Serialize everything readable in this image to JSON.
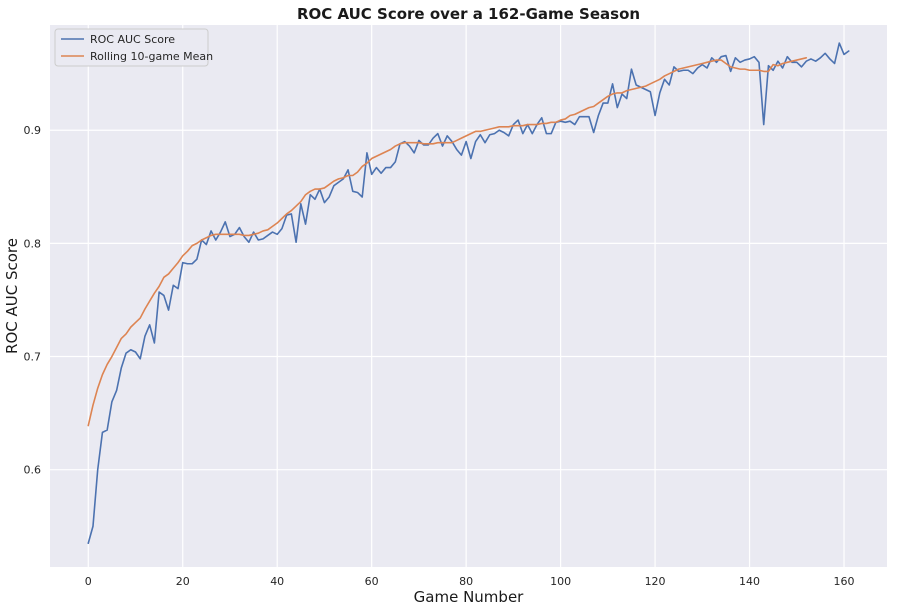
{
  "chart_data": {
    "type": "line",
    "title": "ROC AUC Score over a 162-Game Season",
    "xlabel": "Game Number",
    "ylabel": "ROC AUC Score",
    "xlim": [
      -8.1,
      169.1
    ],
    "ylim": [
      0.514,
      0.993
    ],
    "xticks": [
      0,
      20,
      40,
      60,
      80,
      100,
      120,
      140,
      160
    ],
    "yticks": [
      0.6,
      0.7,
      0.8,
      0.9
    ],
    "ytick_labels": [
      "0.6",
      "0.7",
      "0.8",
      "0.9"
    ],
    "grid": true,
    "legend_position": "upper-left",
    "series": [
      {
        "name": "ROC AUC Score",
        "color": "#4c72b0",
        "x_start": 0,
        "values": [
          0.535,
          0.55,
          0.6,
          0.633,
          0.635,
          0.66,
          0.67,
          0.69,
          0.703,
          0.706,
          0.704,
          0.698,
          0.718,
          0.728,
          0.712,
          0.757,
          0.754,
          0.741,
          0.763,
          0.76,
          0.783,
          0.782,
          0.782,
          0.786,
          0.803,
          0.799,
          0.811,
          0.803,
          0.81,
          0.819,
          0.806,
          0.808,
          0.814,
          0.806,
          0.801,
          0.81,
          0.803,
          0.804,
          0.807,
          0.81,
          0.808,
          0.813,
          0.825,
          0.826,
          0.801,
          0.835,
          0.817,
          0.843,
          0.839,
          0.848,
          0.836,
          0.841,
          0.851,
          0.854,
          0.857,
          0.865,
          0.846,
          0.845,
          0.841,
          0.88,
          0.861,
          0.867,
          0.862,
          0.867,
          0.867,
          0.872,
          0.888,
          0.89,
          0.886,
          0.88,
          0.891,
          0.887,
          0.887,
          0.893,
          0.897,
          0.886,
          0.895,
          0.89,
          0.883,
          0.878,
          0.89,
          0.875,
          0.89,
          0.896,
          0.889,
          0.896,
          0.897,
          0.9,
          0.898,
          0.895,
          0.905,
          0.909,
          0.897,
          0.905,
          0.897,
          0.905,
          0.911,
          0.897,
          0.897,
          0.907,
          0.908,
          0.907,
          0.908,
          0.905,
          0.912,
          0.912,
          0.912,
          0.898,
          0.913,
          0.924,
          0.924,
          0.941,
          0.92,
          0.932,
          0.928,
          0.954,
          0.94,
          0.938,
          0.936,
          0.934,
          0.913,
          0.933,
          0.945,
          0.94,
          0.956,
          0.952,
          0.953,
          0.953,
          0.95,
          0.955,
          0.958,
          0.955,
          0.964,
          0.96,
          0.965,
          0.966,
          0.952,
          0.964,
          0.96,
          0.962,
          0.963,
          0.965,
          0.96,
          0.905,
          0.957,
          0.953,
          0.961,
          0.955,
          0.965,
          0.96,
          0.96,
          0.956,
          0.961,
          0.963,
          0.961,
          0.964,
          0.968,
          0.963,
          0.959,
          0.977,
          0.967,
          0.97
        ]
      },
      {
        "name": "Rolling 10-game Mean",
        "color": "#dd8452",
        "x_start": 0,
        "values": [
          0.639,
          0.657,
          0.672,
          0.684,
          0.693,
          0.7,
          0.708,
          0.716,
          0.72,
          0.726,
          0.73,
          0.734,
          0.742,
          0.749,
          0.756,
          0.762,
          0.77,
          0.773,
          0.778,
          0.783,
          0.789,
          0.793,
          0.798,
          0.8,
          0.803,
          0.805,
          0.807,
          0.808,
          0.808,
          0.808,
          0.808,
          0.808,
          0.808,
          0.807,
          0.807,
          0.808,
          0.809,
          0.811,
          0.812,
          0.815,
          0.818,
          0.822,
          0.826,
          0.829,
          0.833,
          0.837,
          0.843,
          0.846,
          0.848,
          0.848,
          0.849,
          0.852,
          0.855,
          0.857,
          0.858,
          0.86,
          0.86,
          0.863,
          0.868,
          0.871,
          0.875,
          0.877,
          0.879,
          0.881,
          0.883,
          0.886,
          0.888,
          0.889,
          0.889,
          0.889,
          0.889,
          0.888,
          0.888,
          0.888,
          0.889,
          0.889,
          0.889,
          0.889,
          0.891,
          0.893,
          0.895,
          0.897,
          0.899,
          0.899,
          0.9,
          0.901,
          0.902,
          0.903,
          0.903,
          0.903,
          0.904,
          0.904,
          0.904,
          0.905,
          0.905,
          0.905,
          0.906,
          0.906,
          0.907,
          0.907,
          0.909,
          0.91,
          0.913,
          0.914,
          0.916,
          0.918,
          0.92,
          0.921,
          0.924,
          0.927,
          0.93,
          0.932,
          0.933,
          0.933,
          0.935,
          0.936,
          0.937,
          0.938,
          0.939,
          0.941,
          0.943,
          0.945,
          0.948,
          0.95,
          0.952,
          0.954,
          0.955,
          0.956,
          0.957,
          0.958,
          0.959,
          0.96,
          0.961,
          0.962,
          0.962,
          0.959,
          0.956,
          0.955,
          0.954,
          0.954,
          0.953,
          0.953,
          0.953,
          0.952,
          0.952,
          0.958,
          0.957,
          0.959,
          0.96,
          0.961,
          0.962,
          0.963,
          0.964
        ]
      }
    ]
  }
}
